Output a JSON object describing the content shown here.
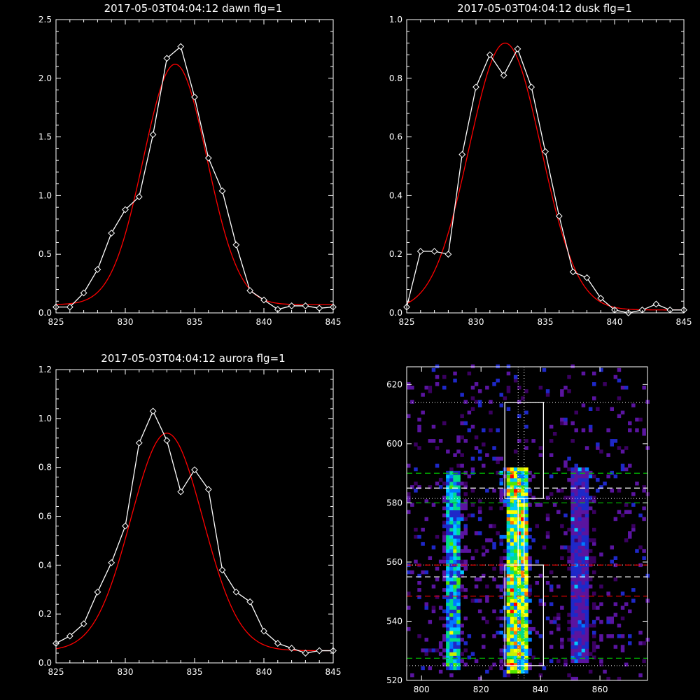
{
  "chart_data": [
    {
      "type": "line",
      "title": "2017-05-03T04:04:12 dawn flg=1",
      "xlim": [
        825,
        845
      ],
      "ylim": [
        0,
        2.5
      ],
      "xticks": [
        "825",
        "830",
        "835",
        "840",
        "845"
      ],
      "yticks": [
        "0.0",
        "0.5",
        "1.0",
        "1.5",
        "2.0",
        "2.5"
      ],
      "data": {
        "x": [
          825,
          826,
          827,
          828,
          829,
          830,
          831,
          832,
          833,
          834,
          835,
          836,
          837,
          838,
          839,
          840,
          841,
          842,
          843,
          844,
          845
        ],
        "y": [
          0.05,
          0.05,
          0.17,
          0.37,
          0.68,
          0.88,
          0.99,
          1.52,
          2.17,
          2.27,
          1.84,
          1.32,
          1.04,
          0.58,
          0.19,
          0.11,
          0.03,
          0.06,
          0.06,
          0.04,
          0.05
        ]
      },
      "fit": {
        "amplitude": 2.05,
        "center": 833.6,
        "sigma": 2.3,
        "offset": 0.07
      },
      "colors": {
        "data": "#ffffff",
        "fit": "#ff0000"
      }
    },
    {
      "type": "line",
      "title": "2017-05-03T04:04:12 dusk flg=1",
      "xlim": [
        825,
        845
      ],
      "ylim": [
        0,
        1.0
      ],
      "xticks": [
        "825",
        "830",
        "835",
        "840",
        "845"
      ],
      "yticks": [
        "0.0",
        "0.2",
        "0.4",
        "0.6",
        "0.8",
        "1.0"
      ],
      "data": {
        "x": [
          825,
          826,
          827,
          828,
          829,
          830,
          831,
          832,
          833,
          834,
          835,
          836,
          837,
          838,
          839,
          840,
          841,
          842,
          843,
          844,
          845
        ],
        "y": [
          0.02,
          0.21,
          0.21,
          0.2,
          0.54,
          0.77,
          0.88,
          0.81,
          0.9,
          0.77,
          0.55,
          0.33,
          0.14,
          0.12,
          0.05,
          0.01,
          0,
          0.01,
          0.03,
          0.01,
          0.01
        ]
      },
      "fit": {
        "amplitude": 0.91,
        "center": 832.1,
        "sigma": 2.6,
        "offset": 0.01
      },
      "colors": {
        "data": "#ffffff",
        "fit": "#ff0000"
      }
    },
    {
      "type": "line",
      "title": "2017-05-03T04:04:12 aurora flg=1",
      "xlim": [
        825,
        845
      ],
      "ylim": [
        0,
        1.2
      ],
      "xticks": [
        "825",
        "830",
        "835",
        "840",
        "845"
      ],
      "yticks": [
        "0.0",
        "0.2",
        "0.4",
        "0.6",
        "0.8",
        "1.0",
        "1.2"
      ],
      "data": {
        "x": [
          825,
          826,
          827,
          828,
          829,
          830,
          831,
          832,
          833,
          834,
          835,
          836,
          837,
          838,
          839,
          840,
          841,
          842,
          843,
          844,
          845
        ],
        "y": [
          0.08,
          0.11,
          0.16,
          0.29,
          0.41,
          0.56,
          0.9,
          1.03,
          0.91,
          0.7,
          0.79,
          0.71,
          0.38,
          0.29,
          0.25,
          0.13,
          0.08,
          0.06,
          0.04,
          0.05,
          0.05
        ]
      },
      "fit": {
        "amplitude": 0.89,
        "center": 833.0,
        "sigma": 2.6,
        "offset": 0.05
      },
      "colors": {
        "data": "#ffffff",
        "fit": "#ff0000"
      }
    },
    {
      "type": "heatmap",
      "xlim": [
        795,
        876
      ],
      "ylim": [
        520,
        626
      ],
      "xticks": [
        "800",
        "820",
        "840",
        "860"
      ],
      "yticks": [
        "520",
        "540",
        "560",
        "580",
        "600",
        "620"
      ],
      "colorscale": [
        "#000000",
        "#3a0060",
        "#5a14a0",
        "#1e28c8",
        "#0078ff",
        "#00c8ff",
        "#00dc8c",
        "#50e600",
        "#c8f000",
        "#ffff00",
        "#ff7800",
        "#ff0000"
      ],
      "bands": [
        {
          "x": [
            808,
            813
          ],
          "y": [
            523,
            590
          ],
          "strength": 0.55
        },
        {
          "x": [
            828,
            835
          ],
          "y": [
            522,
            592
          ],
          "strength": 0.85
        },
        {
          "x": [
            850,
            856
          ],
          "y": [
            525,
            592
          ],
          "strength": 0.25
        }
      ],
      "boxes": [
        {
          "x": [
            828,
            841
          ],
          "y": [
            581.5,
            614
          ]
        },
        {
          "x": [
            828,
            841
          ],
          "y": [
            525,
            559
          ]
        },
        {
          "x": [
            832.5,
            834.5
          ],
          "y": [
            559,
            581.5
          ]
        }
      ],
      "dotted_h": [
        614,
        581.5,
        559,
        525
      ],
      "dotted_v": [
        832.5,
        834.5
      ],
      "dashed_lines": [
        {
          "y": 590,
          "color": "#00c800"
        },
        {
          "y": 580,
          "color": "#00c800"
        },
        {
          "y": 527.5,
          "color": "#00c800"
        },
        {
          "y": 585,
          "color": "#ffffff"
        },
        {
          "y": 555,
          "color": "#ffffff"
        },
        {
          "y": 548.5,
          "color": "#ff0000"
        },
        {
          "y": 559,
          "color": "#ff0000"
        }
      ]
    }
  ]
}
